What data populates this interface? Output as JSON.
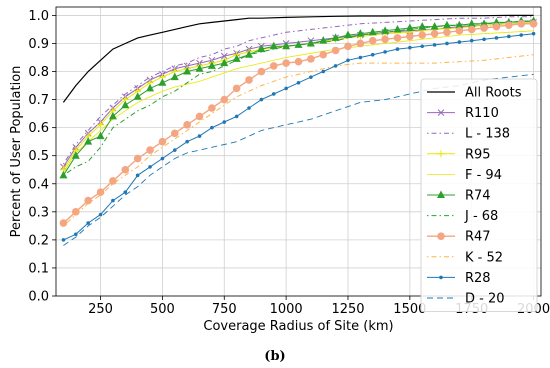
{
  "caption": "(b)",
  "chart_data": {
    "type": "line",
    "xlabel": "Coverage Radius of Site (km)",
    "ylabel": "Percent of User Population",
    "xlim": [
      70,
      2030
    ],
    "ylim": [
      0.0,
      1.03
    ],
    "xticks": [
      250,
      500,
      750,
      1000,
      1250,
      1500,
      1750,
      2000
    ],
    "xtick_labels": [
      "250",
      "500",
      "750",
      "1000",
      "1250",
      "1500",
      "1750",
      "2000"
    ],
    "yticks": [
      0.0,
      0.1,
      0.2,
      0.3,
      0.4,
      0.5,
      0.6,
      0.7,
      0.8,
      0.9,
      1.0
    ],
    "ytick_labels": [
      "0.0",
      "0.1",
      "0.2",
      "0.3",
      "0.4",
      "0.5",
      "0.6",
      "0.7",
      "0.8",
      "0.9",
      "1.0"
    ],
    "grid": true,
    "legend_position": "right",
    "series": [
      {
        "name": "All Roots",
        "color": "#000000",
        "dash": "",
        "marker": "none",
        "width": 1.2,
        "x": [
          100,
          150,
          200,
          250,
          300,
          350,
          400,
          450,
          500,
          550,
          600,
          650,
          700,
          750,
          800,
          850,
          900,
          1000,
          1100,
          1200,
          1300,
          1400,
          1500,
          1600,
          1700,
          1800,
          1900,
          2000
        ],
        "y": [
          0.69,
          0.75,
          0.8,
          0.84,
          0.88,
          0.9,
          0.92,
          0.93,
          0.94,
          0.95,
          0.96,
          0.97,
          0.975,
          0.98,
          0.985,
          0.99,
          0.99,
          0.993,
          0.995,
          0.997,
          0.998,
          0.998,
          0.999,
          0.999,
          0.999,
          0.999,
          1.0,
          1.0
        ]
      },
      {
        "name": "R110",
        "color": "#9467bd",
        "dash": "",
        "marker": "x",
        "width": 1.0,
        "x": [
          100,
          150,
          200,
          250,
          300,
          350,
          400,
          450,
          500,
          550,
          600,
          650,
          700,
          750,
          800,
          850,
          900,
          1000,
          1100,
          1200,
          1300,
          1400,
          1500,
          1600,
          1700,
          1800,
          1900,
          2000
        ],
        "y": [
          0.46,
          0.53,
          0.58,
          0.62,
          0.67,
          0.71,
          0.74,
          0.77,
          0.79,
          0.81,
          0.82,
          0.83,
          0.84,
          0.855,
          0.865,
          0.88,
          0.89,
          0.9,
          0.91,
          0.92,
          0.93,
          0.94,
          0.945,
          0.95,
          0.96,
          0.965,
          0.97,
          0.975
        ]
      },
      {
        "name": "L - 138",
        "color": "#9467bd",
        "dash": "1.5,3,5,3",
        "marker": "none",
        "width": 1.0,
        "x": [
          100,
          150,
          200,
          250,
          300,
          350,
          400,
          450,
          500,
          550,
          600,
          650,
          700,
          750,
          800,
          850,
          900,
          1000,
          1100,
          1200,
          1300,
          1400,
          1500,
          1600,
          1700,
          1800,
          1900,
          2000
        ],
        "y": [
          0.47,
          0.54,
          0.59,
          0.64,
          0.68,
          0.72,
          0.75,
          0.78,
          0.8,
          0.82,
          0.83,
          0.85,
          0.86,
          0.88,
          0.89,
          0.91,
          0.92,
          0.94,
          0.95,
          0.96,
          0.97,
          0.975,
          0.98,
          0.985,
          0.99,
          0.99,
          0.995,
          0.995
        ]
      },
      {
        "name": "R95",
        "color": "#e8e800",
        "dash": "",
        "marker": "plus",
        "width": 1.0,
        "x": [
          100,
          150,
          200,
          250,
          300,
          350,
          400,
          450,
          500,
          550,
          600,
          650,
          700,
          750,
          800,
          850,
          900,
          1000,
          1100,
          1200,
          1300,
          1400,
          1500,
          1600,
          1700,
          1800,
          1900,
          2000
        ],
        "y": [
          0.45,
          0.52,
          0.57,
          0.61,
          0.66,
          0.7,
          0.73,
          0.76,
          0.78,
          0.8,
          0.81,
          0.82,
          0.83,
          0.84,
          0.86,
          0.87,
          0.88,
          0.89,
          0.9,
          0.915,
          0.925,
          0.935,
          0.94,
          0.95,
          0.955,
          0.965,
          0.97,
          0.975
        ]
      },
      {
        "name": "F - 94",
        "color": "#e8e800",
        "dash": "",
        "marker": "none",
        "width": 0.8,
        "x": [
          100,
          150,
          200,
          250,
          300,
          350,
          400,
          450,
          500,
          550,
          600,
          650,
          700,
          750,
          800,
          850,
          900,
          1000,
          1100,
          1200,
          1300,
          1400,
          1500,
          1600,
          1700,
          1800,
          1900,
          2000
        ],
        "y": [
          0.44,
          0.51,
          0.55,
          0.59,
          0.63,
          0.66,
          0.69,
          0.71,
          0.73,
          0.745,
          0.755,
          0.765,
          0.78,
          0.795,
          0.81,
          0.82,
          0.83,
          0.85,
          0.865,
          0.88,
          0.89,
          0.9,
          0.91,
          0.92,
          0.93,
          0.935,
          0.94,
          0.945
        ]
      },
      {
        "name": "R74",
        "color": "#2ca02c",
        "dash": "",
        "marker": "triangle",
        "width": 1.0,
        "x": [
          100,
          150,
          200,
          250,
          300,
          350,
          400,
          450,
          500,
          550,
          600,
          650,
          700,
          750,
          800,
          850,
          900,
          950,
          1000,
          1050,
          1100,
          1150,
          1200,
          1250,
          1300,
          1350,
          1400,
          1450,
          1500,
          1550,
          1600,
          1650,
          1700,
          1750,
          1800,
          1850,
          1900,
          1950,
          2000
        ],
        "y": [
          0.43,
          0.5,
          0.55,
          0.57,
          0.64,
          0.68,
          0.71,
          0.74,
          0.76,
          0.78,
          0.8,
          0.81,
          0.82,
          0.83,
          0.845,
          0.86,
          0.88,
          0.89,
          0.89,
          0.895,
          0.9,
          0.91,
          0.92,
          0.93,
          0.935,
          0.94,
          0.945,
          0.95,
          0.955,
          0.96,
          0.96,
          0.965,
          0.965,
          0.97,
          0.97,
          0.975,
          0.975,
          0.98,
          0.98
        ]
      },
      {
        "name": "J - 68",
        "color": "#2ca02c",
        "dash": "1.5,3,5,3",
        "marker": "none",
        "width": 1.0,
        "x": [
          100,
          150,
          200,
          250,
          300,
          350,
          400,
          450,
          500,
          550,
          600,
          650,
          700,
          750,
          800,
          850,
          900,
          1000,
          1100,
          1200,
          1300,
          1400,
          1500,
          1600,
          1700,
          1800,
          1900,
          2000
        ],
        "y": [
          0.43,
          0.46,
          0.48,
          0.53,
          0.6,
          0.63,
          0.66,
          0.68,
          0.71,
          0.73,
          0.76,
          0.79,
          0.8,
          0.82,
          0.84,
          0.86,
          0.87,
          0.89,
          0.9,
          0.91,
          0.93,
          0.94,
          0.95,
          0.96,
          0.965,
          0.97,
          0.975,
          0.98
        ]
      },
      {
        "name": "R47",
        "color": "#f4a582",
        "dash": "",
        "marker": "circle",
        "width": 1.4,
        "x": [
          100,
          150,
          200,
          250,
          300,
          350,
          400,
          450,
          500,
          550,
          600,
          650,
          700,
          750,
          800,
          850,
          900,
          950,
          1000,
          1050,
          1100,
          1150,
          1200,
          1250,
          1300,
          1350,
          1400,
          1450,
          1500,
          1550,
          1600,
          1650,
          1700,
          1750,
          1800,
          1850,
          1900,
          1950,
          2000
        ],
        "y": [
          0.26,
          0.3,
          0.34,
          0.37,
          0.41,
          0.45,
          0.49,
          0.52,
          0.55,
          0.58,
          0.61,
          0.64,
          0.67,
          0.7,
          0.74,
          0.77,
          0.8,
          0.82,
          0.83,
          0.835,
          0.845,
          0.86,
          0.875,
          0.89,
          0.9,
          0.91,
          0.915,
          0.92,
          0.925,
          0.93,
          0.935,
          0.94,
          0.945,
          0.95,
          0.955,
          0.96,
          0.965,
          0.97,
          0.97
        ]
      },
      {
        "name": "K - 52",
        "color": "#ffb347",
        "dash": "1.5,3,5,3",
        "marker": "none",
        "width": 1.0,
        "x": [
          100,
          150,
          200,
          250,
          300,
          350,
          400,
          450,
          500,
          550,
          600,
          650,
          700,
          750,
          800,
          850,
          900,
          1000,
          1100,
          1200,
          1300,
          1400,
          1500,
          1600,
          1700,
          1800,
          1900,
          2000
        ],
        "y": [
          0.25,
          0.29,
          0.33,
          0.36,
          0.4,
          0.43,
          0.46,
          0.5,
          0.53,
          0.56,
          0.59,
          0.62,
          0.65,
          0.68,
          0.71,
          0.73,
          0.75,
          0.78,
          0.8,
          0.82,
          0.83,
          0.83,
          0.83,
          0.83,
          0.835,
          0.84,
          0.85,
          0.86
        ]
      },
      {
        "name": "R28",
        "color": "#1f77b4",
        "dash": "",
        "marker": "dot",
        "width": 1.0,
        "x": [
          100,
          150,
          200,
          250,
          300,
          350,
          400,
          450,
          500,
          550,
          600,
          650,
          700,
          750,
          800,
          850,
          900,
          950,
          1000,
          1050,
          1100,
          1150,
          1200,
          1250,
          1300,
          1350,
          1400,
          1450,
          1500,
          1550,
          1600,
          1650,
          1700,
          1750,
          1800,
          1850,
          1900,
          1950,
          2000
        ],
        "y": [
          0.2,
          0.22,
          0.26,
          0.29,
          0.34,
          0.37,
          0.43,
          0.46,
          0.49,
          0.52,
          0.55,
          0.57,
          0.6,
          0.62,
          0.64,
          0.67,
          0.7,
          0.72,
          0.74,
          0.76,
          0.78,
          0.8,
          0.82,
          0.84,
          0.85,
          0.86,
          0.87,
          0.88,
          0.885,
          0.89,
          0.895,
          0.9,
          0.905,
          0.91,
          0.915,
          0.92,
          0.925,
          0.93,
          0.935
        ]
      },
      {
        "name": "D - 20",
        "color": "#1f77b4",
        "dash": "6,4",
        "marker": "none",
        "width": 0.9,
        "x": [
          100,
          150,
          200,
          250,
          300,
          350,
          400,
          450,
          500,
          550,
          600,
          650,
          700,
          750,
          800,
          850,
          900,
          1000,
          1100,
          1200,
          1300,
          1400,
          1500,
          1600,
          1700,
          1800,
          1900,
          2000
        ],
        "y": [
          0.18,
          0.21,
          0.25,
          0.28,
          0.32,
          0.36,
          0.39,
          0.43,
          0.46,
          0.49,
          0.51,
          0.52,
          0.53,
          0.54,
          0.55,
          0.57,
          0.59,
          0.61,
          0.63,
          0.66,
          0.69,
          0.7,
          0.72,
          0.74,
          0.75,
          0.77,
          0.78,
          0.79
        ]
      }
    ]
  }
}
